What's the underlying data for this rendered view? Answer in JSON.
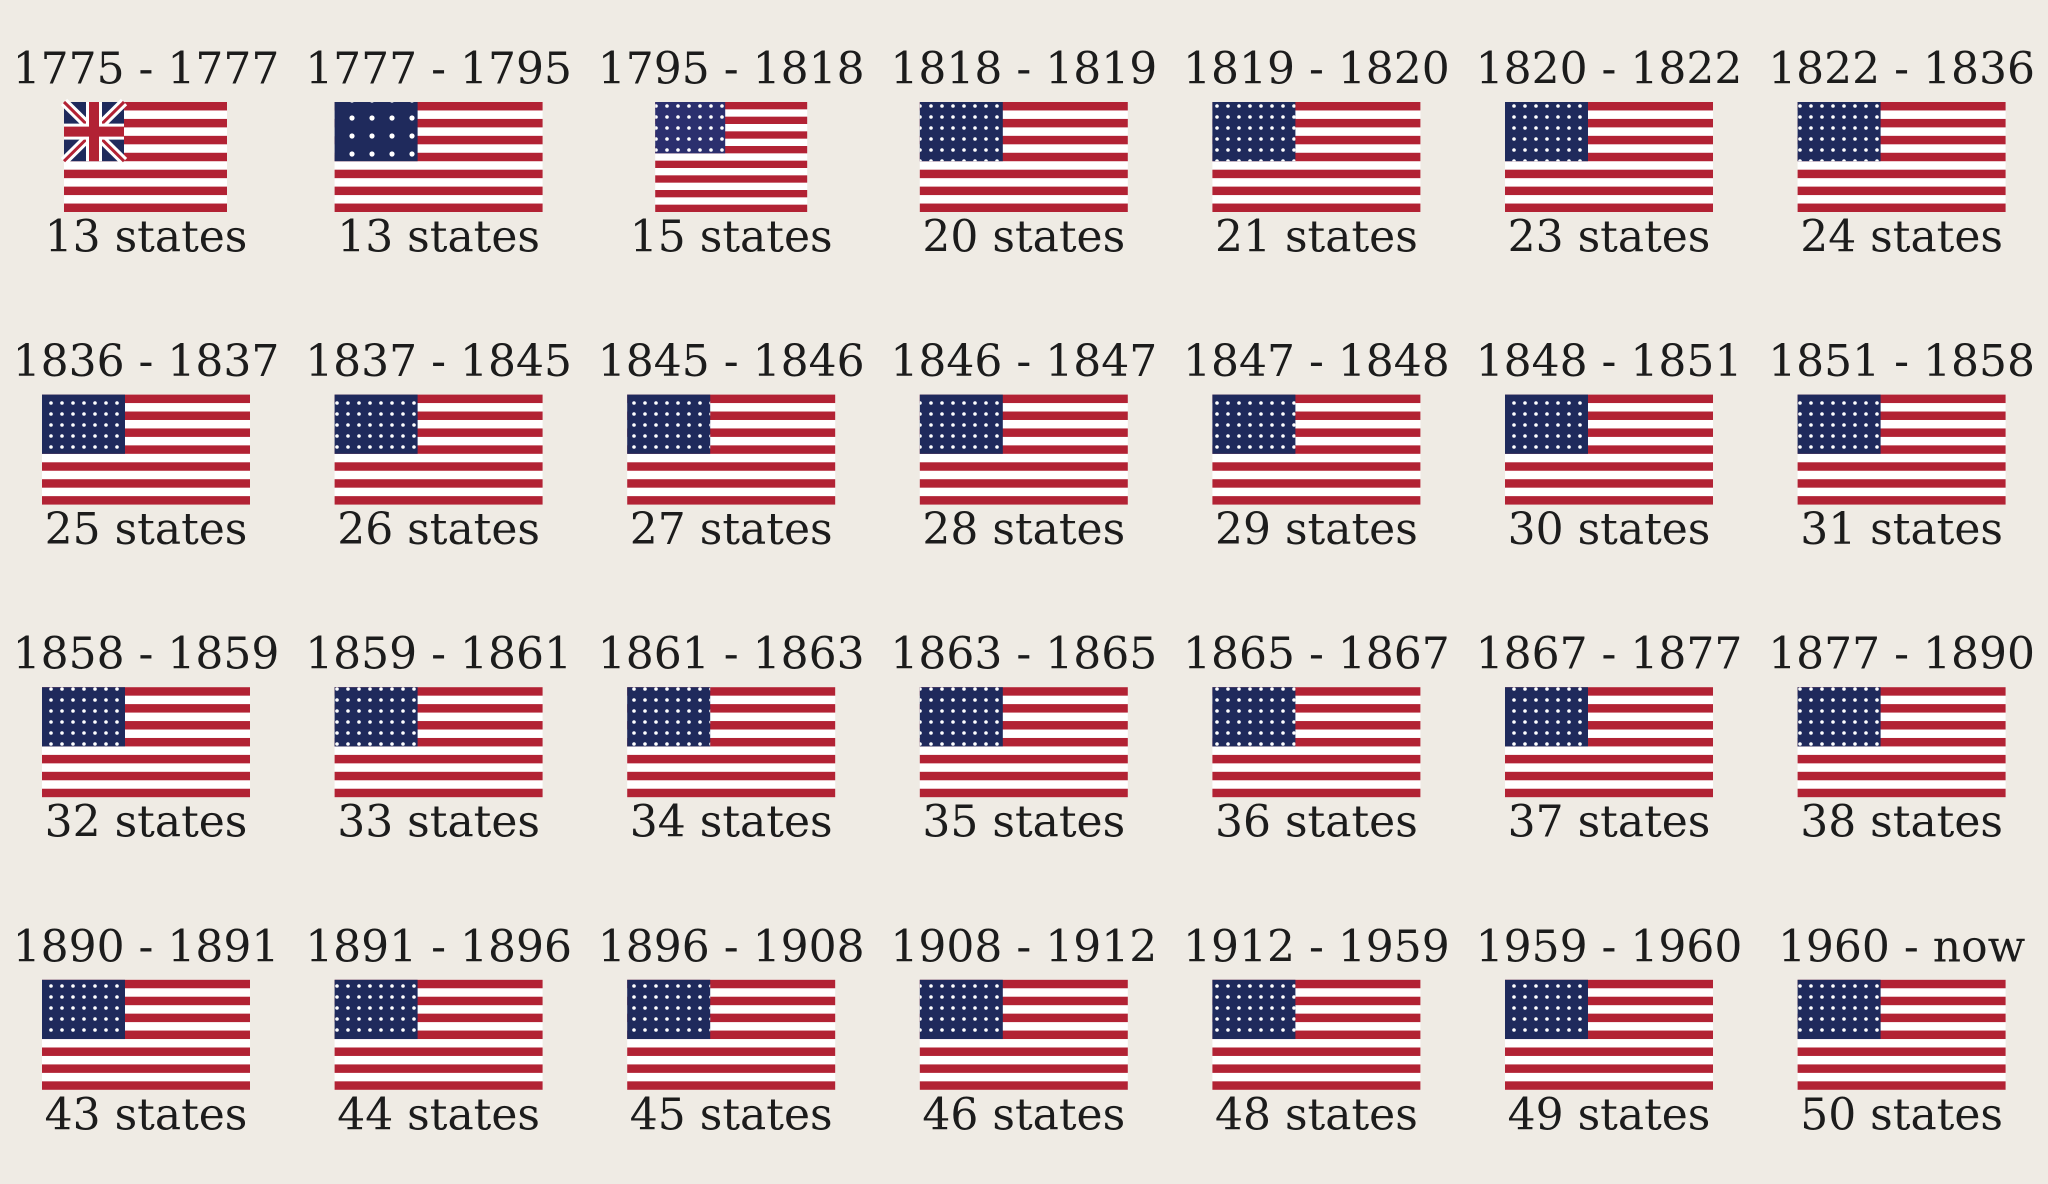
{
  "flags": [
    {
      "period": "1775 - 1777",
      "states": "13 states"
    },
    {
      "period": "1777 - 1795",
      "states": "13 states"
    },
    {
      "period": "1795 - 1818",
      "states": "15 states"
    },
    {
      "period": "1818 - 1819",
      "states": "20 states"
    },
    {
      "period": "1819 - 1820",
      "states": "21 states"
    },
    {
      "period": "1820 - 1822",
      "states": "23 states"
    },
    {
      "period": "1822 - 1836",
      "states": "24 states"
    },
    {
      "period": "1836 - 1837",
      "states": "25 states"
    },
    {
      "period": "1837 - 1845",
      "states": "26 states"
    },
    {
      "period": "1845 - 1846",
      "states": "27 states"
    },
    {
      "period": "1846 - 1847",
      "states": "28 states"
    },
    {
      "period": "1847 - 1848",
      "states": "29 states"
    },
    {
      "period": "1848 - 1851",
      "states": "30 states"
    },
    {
      "period": "1851 - 1858",
      "states": "31 states"
    },
    {
      "period": "1858 - 1859",
      "states": "32 states"
    },
    {
      "period": "1859 - 1861",
      "states": "33 states"
    },
    {
      "period": "1861 - 1863",
      "states": "34 states"
    },
    {
      "period": "1863 - 1865",
      "states": "35 states"
    },
    {
      "period": "1865 - 1867",
      "states": "36 states"
    },
    {
      "period": "1867 - 1877",
      "states": "37 states"
    },
    {
      "period": "1877 - 1890",
      "states": "38 states"
    },
    {
      "period": "1890 - 1891",
      "states": "43 states"
    },
    {
      "period": "1891 - 1896",
      "states": "44 states"
    },
    {
      "period": "1896 - 1908",
      "states": "45 states"
    },
    {
      "period": "1908 - 1912",
      "states": "46 states"
    },
    {
      "period": "1912 - 1959",
      "states": "48 states"
    },
    {
      "period": "1959 - 1960",
      "states": "49 states"
    },
    {
      "period": "1960 - now",
      "states": "50 states"
    }
  ]
}
